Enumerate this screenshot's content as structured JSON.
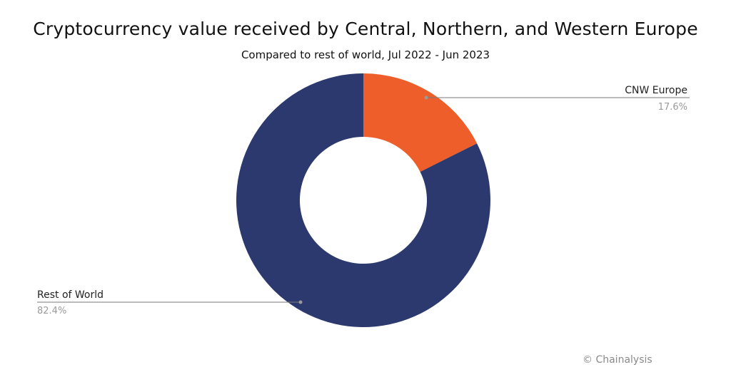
{
  "chart_data": {
    "type": "pie",
    "title": "Cryptocurrency value received by Central, Northern, and Western Europe",
    "subtitle": "Compared to rest of world, Jul 2022 - Jun 2023",
    "donut": true,
    "slices": [
      {
        "label": "CNW Europe",
        "value": 17.6,
        "value_label": "17.6%",
        "color": "#EE5E2B"
      },
      {
        "label": "Rest of World",
        "value": 82.4,
        "value_label": "82.4%",
        "color": "#2B396E"
      }
    ]
  },
  "credit": "© Chainalysis"
}
